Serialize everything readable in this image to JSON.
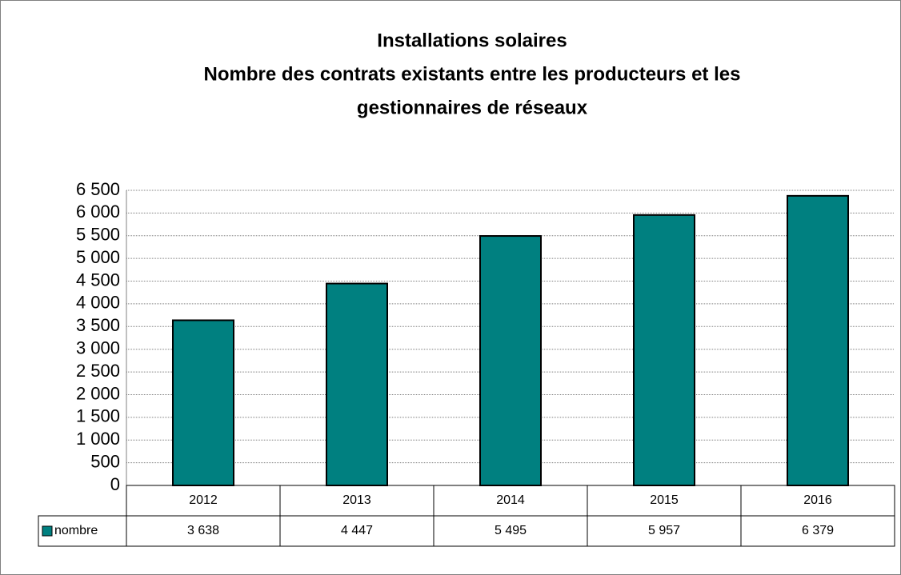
{
  "chart_data": {
    "type": "bar",
    "title": [
      "Installations solaires",
      "Nombre des contrats existants entre les producteurs et les",
      "gestionnaires de réseaux"
    ],
    "categories": [
      "2012",
      "2013",
      "2014",
      "2015",
      "2016"
    ],
    "series": [
      {
        "name": "nombre",
        "color": "#008080",
        "values": [
          3638,
          4447,
          5495,
          5957,
          6379
        ],
        "value_labels": [
          "3 638",
          "4 447",
          "5 495",
          "5 957",
          "6 379"
        ]
      }
    ],
    "ylim": [
      0,
      6500
    ],
    "yticks": [
      0,
      500,
      {
        "value": 1000,
        "label": "1 000"
      },
      {
        "value": 1500,
        "label": "1 500"
      },
      {
        "value": 2000,
        "label": "2 000"
      },
      {
        "value": 2500,
        "label": "2 500"
      },
      {
        "value": 3000,
        "label": "3 000"
      },
      {
        "value": 3500,
        "label": "3 500"
      },
      {
        "value": 4000,
        "label": "4 000"
      },
      {
        "value": 4500,
        "label": "4 500"
      },
      {
        "value": 5000,
        "label": "5 000"
      },
      {
        "value": 5500,
        "label": "5 500"
      },
      {
        "value": 6000,
        "label": "6 000"
      },
      {
        "value": 6500,
        "label": "6 500"
      }
    ],
    "grid": true
  }
}
